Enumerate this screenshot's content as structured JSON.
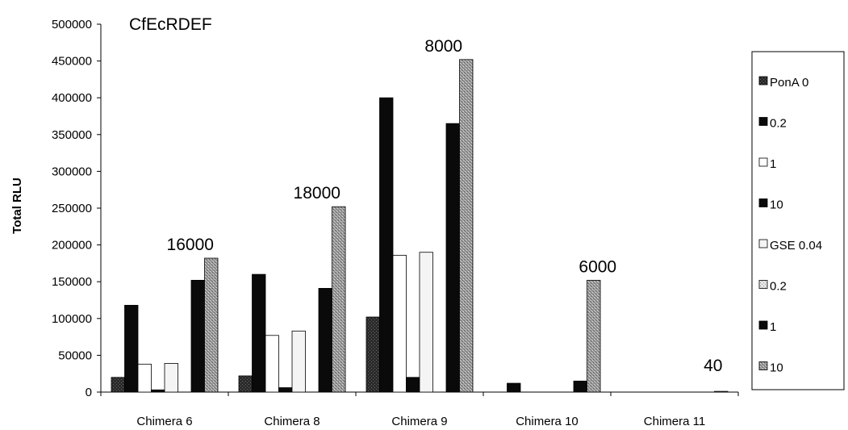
{
  "chart_data": {
    "type": "bar",
    "title": "CfEcRDEF",
    "ylabel": "Total RLU",
    "xlabel": "",
    "ylim": [
      0,
      500000
    ],
    "yticks": [
      0,
      50000,
      100000,
      150000,
      200000,
      250000,
      300000,
      350000,
      400000,
      450000,
      500000
    ],
    "categories": [
      "Chimera 6",
      "Chimera 8",
      "Chimera 9",
      "Chimera 10",
      "Chimera 11"
    ],
    "series": [
      {
        "name": "PonA 0",
        "color": "#333333",
        "pattern": "dark",
        "values": [
          20000,
          22000,
          102000,
          0,
          0
        ]
      },
      {
        "name": "0.2",
        "color": "#0a0a0a",
        "pattern": "solid",
        "values": [
          118000,
          160000,
          400000,
          12000,
          0
        ]
      },
      {
        "name": "1",
        "color": "#ffffff",
        "pattern": "white",
        "values": [
          38000,
          77000,
          186000,
          0,
          0
        ]
      },
      {
        "name": "10",
        "color": "#0a0a0a",
        "pattern": "solid",
        "values": [
          3000,
          6000,
          20000,
          0,
          0
        ]
      },
      {
        "name": "GSE 0.04",
        "color": "#f4f4f4",
        "pattern": "white",
        "values": [
          39000,
          83000,
          190000,
          0,
          0
        ]
      },
      {
        "name": "0.2",
        "color": "#e0e0e0",
        "pattern": "light",
        "values": [
          0,
          0,
          0,
          0,
          0
        ]
      },
      {
        "name": "1",
        "color": "#0a0a0a",
        "pattern": "solid",
        "values": [
          152000,
          141000,
          365000,
          15000,
          0
        ]
      },
      {
        "name": "10",
        "color": "#a8a8a8",
        "pattern": "stipple",
        "values": [
          182000,
          252000,
          452000,
          152000,
          1000
        ]
      }
    ],
    "annotations": [
      "16000",
      "18000",
      "8000",
      "6000",
      "40"
    ],
    "grid": false,
    "legend_position": "right"
  }
}
